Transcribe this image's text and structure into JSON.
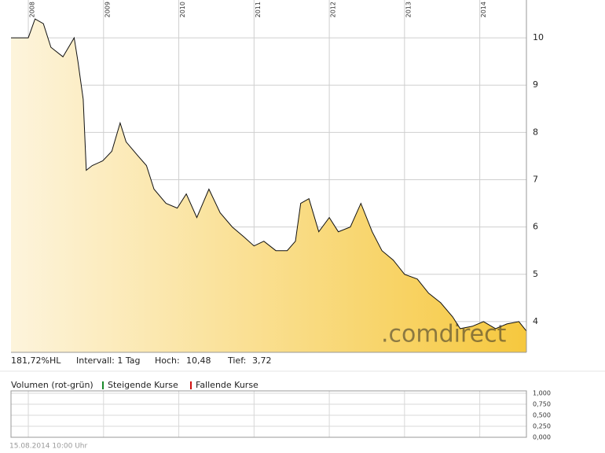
{
  "chart_data": {
    "type": "area",
    "x": [
      2007.77,
      2008.0,
      2008.09,
      2008.2,
      2008.3,
      2008.46,
      2008.61,
      2008.66,
      2008.73,
      2008.77,
      2008.85,
      2008.99,
      2009.11,
      2009.22,
      2009.3,
      2009.46,
      2009.57,
      2009.67,
      2009.83,
      2009.98,
      2010.1,
      2010.24,
      2010.4,
      2010.55,
      2010.71,
      2010.86,
      2011.0,
      2011.13,
      2011.29,
      2011.44,
      2011.55,
      2011.62,
      2011.73,
      2011.86,
      2012.0,
      2012.12,
      2012.28,
      2012.42,
      2012.57,
      2012.7,
      2012.85,
      2013.0,
      2013.17,
      2013.32,
      2013.48,
      2013.64,
      2013.74,
      2013.9,
      2014.05,
      2014.21,
      2014.36,
      2014.52,
      2014.62
    ],
    "values": [
      10.0,
      10.0,
      10.4,
      10.3,
      9.8,
      9.6,
      10.0,
      9.5,
      8.7,
      7.2,
      7.3,
      7.4,
      7.6,
      8.2,
      7.8,
      7.5,
      7.3,
      6.8,
      6.5,
      6.4,
      6.7,
      6.2,
      6.8,
      6.3,
      6.0,
      5.8,
      5.6,
      5.7,
      5.5,
      5.5,
      5.7,
      6.5,
      6.6,
      5.9,
      6.2,
      5.9,
      6.0,
      6.5,
      5.9,
      5.5,
      5.3,
      5.0,
      4.9,
      4.6,
      4.4,
      4.1,
      3.85,
      3.9,
      4.0,
      3.85,
      3.95,
      4.0,
      3.8
    ],
    "color": "#111111",
    "xlim": [
      2007.77,
      2014.62
    ],
    "xticks": [
      2008,
      2009,
      2010,
      2011,
      2012,
      2013,
      2014
    ],
    "ylim": [
      3.35,
      10.8
    ],
    "yticks": [
      4,
      5,
      6,
      7,
      8,
      9,
      10
    ],
    "grid": true,
    "watermark": ".comdirect",
    "stats": {
      "range": "181,72%HL",
      "interval": "Intervall: 1 Tag",
      "high_label": "Hoch:",
      "high": "10,48",
      "low_label": "Tief:",
      "low": "3,72"
    },
    "volume": {
      "title": "Volumen (rot-grün)",
      "up_label": "Steigende Kurse",
      "up_color": "#1a8a2a",
      "down_label": "Fallende Kurse",
      "down_color": "#d01010",
      "ylim": [
        0,
        1
      ],
      "yticks": [
        {
          "value": 1,
          "label": "1,000"
        },
        {
          "value": 0.75,
          "label": "0,750"
        },
        {
          "value": 0.5,
          "label": "0,500"
        },
        {
          "value": 0.25,
          "label": "0,250"
        },
        {
          "value": 0,
          "label": "0,000"
        }
      ]
    },
    "footer": "15.08.2014 10:00 Uhr"
  }
}
